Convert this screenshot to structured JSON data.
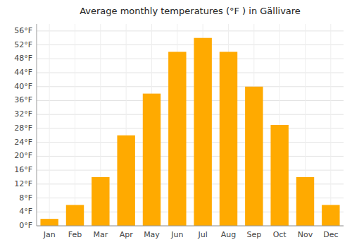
{
  "chart_data": {
    "type": "bar",
    "title": "Average monthly temperatures (°F ) in Gällivare",
    "categories": [
      "Jan",
      "Feb",
      "Mar",
      "Apr",
      "May",
      "Jun",
      "Jul",
      "Aug",
      "Sep",
      "Oct",
      "Nov",
      "Dec"
    ],
    "values": [
      2,
      6,
      14,
      26,
      38,
      50,
      54,
      50,
      40,
      29,
      14,
      6
    ],
    "color": "#FFAA00",
    "ylim": [
      0,
      58
    ],
    "yticks": [
      {
        "value": 0,
        "label": "0°F"
      },
      {
        "value": 4,
        "label": "4°F"
      },
      {
        "value": 8,
        "label": "8°F"
      },
      {
        "value": 12,
        "label": "12°F"
      },
      {
        "value": 16,
        "label": "16°F"
      },
      {
        "value": 20,
        "label": "20°F"
      },
      {
        "value": 24,
        "label": "24°F"
      },
      {
        "value": 28,
        "label": "28°F"
      },
      {
        "value": 32,
        "label": "32°F"
      },
      {
        "value": 36,
        "label": "36°F"
      },
      {
        "value": 40,
        "label": "40°F"
      },
      {
        "value": 44,
        "label": "44°F"
      },
      {
        "value": 48,
        "label": "48°F"
      },
      {
        "value": 52,
        "label": "52°F"
      },
      {
        "value": 56,
        "label": "56°F"
      }
    ],
    "grid": true
  }
}
